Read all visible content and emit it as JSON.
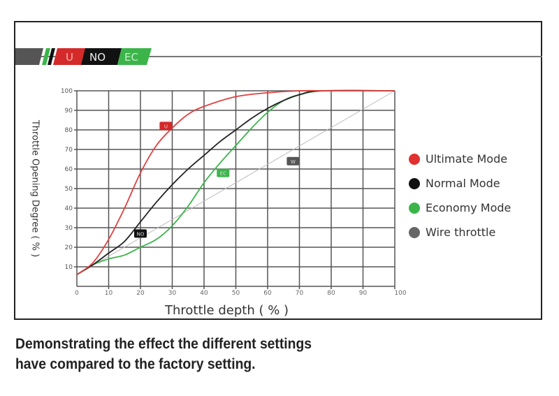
{
  "logo": {
    "segments": [
      "U",
      "NO",
      "EC"
    ],
    "colors": {
      "U": "#d42a2a",
      "NO": "#111111",
      "EC": "#3bb54a"
    }
  },
  "chart_data": {
    "type": "line",
    "title": "",
    "xlabel": "Throttle depth ( % )",
    "ylabel": "Throttle Opening Degree ( % )",
    "xlim": [
      0,
      100
    ],
    "ylim": [
      0,
      100
    ],
    "xticks": [
      0,
      10,
      20,
      30,
      40,
      50,
      60,
      70,
      80,
      90,
      100
    ],
    "yticks": [
      10,
      20,
      30,
      40,
      50,
      60,
      70,
      80,
      90,
      100
    ],
    "grid": true,
    "legend_position": "right",
    "series": [
      {
        "name": "Ultimate Mode",
        "badge": "U",
        "color": "#e04040",
        "badge_at": [
          28,
          82
        ],
        "x": [
          0,
          5,
          10,
          15,
          20,
          25,
          30,
          35,
          40,
          50,
          60,
          70,
          80,
          100
        ],
        "y": [
          6,
          12,
          24,
          40,
          58,
          72,
          81,
          88,
          92,
          97,
          99,
          100,
          100,
          100
        ]
      },
      {
        "name": "Normal Mode",
        "badge": "NO",
        "color": "#222222",
        "badge_at": [
          20,
          27
        ],
        "x": [
          0,
          5,
          10,
          15,
          20,
          25,
          30,
          35,
          40,
          45,
          50,
          55,
          60,
          65,
          70,
          77,
          100
        ],
        "y": [
          6,
          11,
          17,
          23,
          33,
          43,
          52,
          60,
          67,
          74,
          80,
          86,
          91,
          95,
          98,
          100,
          100
        ]
      },
      {
        "name": "Economy Mode",
        "badge": "EC",
        "color": "#3bb54a",
        "badge_at": [
          46,
          58
        ],
        "x": [
          0,
          5,
          10,
          15,
          20,
          25,
          30,
          35,
          40,
          45,
          50,
          55,
          60,
          65,
          70,
          78,
          100
        ],
        "y": [
          6,
          11,
          14,
          16,
          20,
          24,
          31,
          41,
          53,
          63,
          72,
          81,
          89,
          95,
          98,
          100,
          100
        ]
      },
      {
        "name": "Wire throttle",
        "badge": "W",
        "color": "#bbbbbb",
        "badge_at": [
          68,
          64
        ],
        "x": [
          0,
          100
        ],
        "y": [
          6,
          100
        ]
      }
    ]
  },
  "caption": [
    "Demonstrating the effect the different settings",
    "have compared to the factory setting."
  ]
}
